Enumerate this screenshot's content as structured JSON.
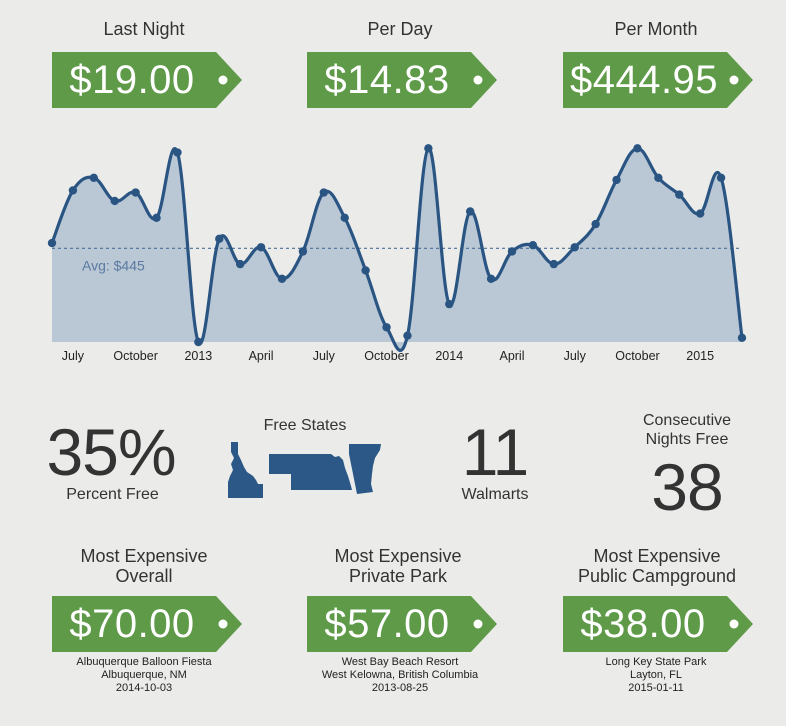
{
  "header": {
    "last_night": {
      "title": "Last Night",
      "value": "$19.00"
    },
    "per_day": {
      "title": "Per Day",
      "value": "$14.83"
    },
    "per_month": {
      "title": "Per Month",
      "value": "$444.95"
    }
  },
  "chart_data": {
    "type": "area",
    "x": [
      "2012-06",
      "2012-07",
      "2012-08",
      "2012-09",
      "2012-10",
      "2012-11",
      "2012-12",
      "2013-01",
      "2013-02",
      "2013-03",
      "2013-04",
      "2013-05",
      "2013-06",
      "2013-07",
      "2013-08",
      "2013-09",
      "2013-10",
      "2013-11",
      "2013-12",
      "2014-01",
      "2014-02",
      "2014-03",
      "2014-04",
      "2014-05",
      "2014-06",
      "2014-07",
      "2014-08",
      "2014-09",
      "2014-10",
      "2014-11",
      "2014-12",
      "2015-01",
      "2015-02",
      "2015-03"
    ],
    "series": [
      {
        "values": [
          470,
          720,
          780,
          670,
          710,
          590,
          900,
          0,
          490,
          370,
          450,
          300,
          430,
          710,
          590,
          340,
          70,
          30,
          920,
          180,
          620,
          300,
          430,
          460,
          370,
          450,
          560,
          770,
          920,
          780,
          700,
          610,
          780,
          20
        ]
      }
    ],
    "x_tick_labels": [
      "July",
      "October",
      "2013",
      "April",
      "July",
      "October",
      "2014",
      "April",
      "July",
      "October",
      "2015"
    ],
    "avg": 445,
    "avg_label": "Avg: $445",
    "ylim": [
      0,
      950
    ],
    "colors": {
      "line": "#2a5583",
      "fill": "#a9bccf",
      "avg": "#4b6f96"
    }
  },
  "middle": {
    "percent_free": {
      "value": "35%",
      "label": "Percent Free"
    },
    "free_states": {
      "label": "Free States",
      "states": [
        "Idaho-icon",
        "Nebraska-icon",
        "Vermont-icon"
      ]
    },
    "walmarts": {
      "value": "11",
      "label": "Walmarts"
    },
    "consecutive": {
      "label_line1": "Consecutive",
      "label_line2": "Nights Free",
      "value": "38"
    }
  },
  "bottom": {
    "overall": {
      "title1": "Most Expensive",
      "title2": "Overall",
      "value": "$70.00",
      "name": "Albuquerque Balloon Fiesta",
      "location": "Albuquerque, NM",
      "date": "2014-10-03"
    },
    "private": {
      "title1": "Most Expensive",
      "title2": "Private Park",
      "value": "$57.00",
      "name": "West Bay Beach Resort",
      "location": "West Kelowna, British Columbia",
      "date": "2013-08-25"
    },
    "public": {
      "title1": "Most Expensive",
      "title2": "Public Campground",
      "value": "$38.00",
      "name": "Long Key State Park",
      "location": "Layton, FL",
      "date": "2015-01-11"
    }
  },
  "colors": {
    "tag_green": "#5e9a48",
    "state_blue": "#2b5886"
  }
}
